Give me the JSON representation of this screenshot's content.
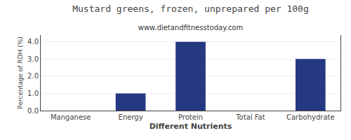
{
  "chart_data": {
    "type": "bar",
    "title": "Mustard greens, frozen, unprepared per 100g",
    "subtitle": "www.dietandfitnesstoday.com",
    "xlabel": "Different Nutrients",
    "ylabel": "Percentage of RDH (%)",
    "categories": [
      "Manganese",
      "Energy",
      "Protein",
      "Total Fat",
      "Carbohydrate"
    ],
    "values": [
      0.0,
      1.0,
      4.0,
      0.0,
      3.0
    ],
    "color": "#253882",
    "ylim": [
      0,
      4.4
    ],
    "yticks": [
      {
        "value": 0,
        "label": "0.0"
      },
      {
        "value": 1,
        "label": "1.0"
      },
      {
        "value": 2,
        "label": "2.0"
      },
      {
        "value": 3,
        "label": "3.0"
      },
      {
        "value": 4,
        "label": "4.0"
      }
    ],
    "grid": true
  }
}
